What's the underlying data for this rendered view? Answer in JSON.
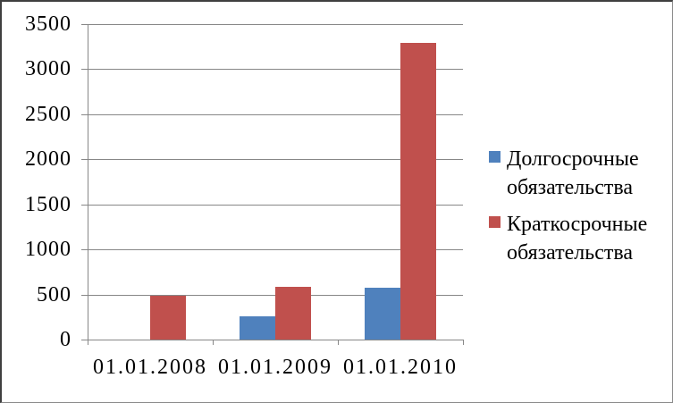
{
  "window": {
    "background": "#ffffff",
    "border_color_dark": "#3f3f3f",
    "border_color_light": "#8a8a8a"
  },
  "chart_data": {
    "type": "bar",
    "title": "",
    "xlabel": "",
    "ylabel": "",
    "categories": [
      "01.01.2008",
      "01.01.2009",
      "01.01.2010"
    ],
    "series": [
      {
        "name": "Долгосрочные обязательства",
        "color": "#4F81BD",
        "values": [
          0,
          260,
          575
        ]
      },
      {
        "name": "Краткосрочные обязательства",
        "color": "#C0504D",
        "values": [
          490,
          585,
          3290
        ]
      }
    ],
    "ylim": [
      0,
      3500
    ],
    "ytick_step": 500,
    "ytick_labels": [
      "0",
      "500",
      "1000",
      "1500",
      "2000",
      "2500",
      "3000",
      "3500"
    ],
    "grid": true,
    "gridline_color": "#878787",
    "axis_color": "#878787",
    "legend_position": "right",
    "legend_text_color": "#000000"
  }
}
